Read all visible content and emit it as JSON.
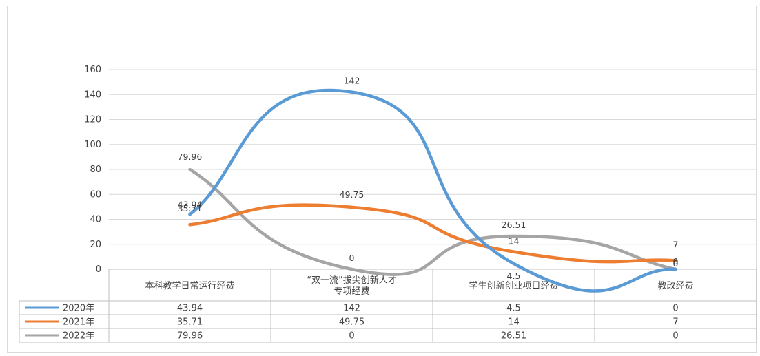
{
  "chart_data": {
    "type": "line",
    "smooth": true,
    "categories": [
      "本科教学日常运行经费",
      "“双一流”拔尖创新人才专项经费",
      "学生创新创业项目经费",
      "教改经费"
    ],
    "category_lines": [
      [
        "本科教学日常运行经费"
      ],
      [
        "“双一流”拔尖创新人才",
        "专项经费"
      ],
      [
        "学生创新创业项目经费"
      ],
      [
        "教改经费"
      ]
    ],
    "series": [
      {
        "name": "2020年",
        "color": "#5b9bd5",
        "values": [
          43.94,
          142,
          4.5,
          0
        ],
        "labels": [
          "43.94",
          "142",
          "4.5",
          "0"
        ]
      },
      {
        "name": "2021年",
        "color": "#ed7d31",
        "values": [
          35.71,
          49.75,
          14,
          7
        ],
        "labels": [
          "35.71",
          "49.75",
          "14",
          "7"
        ]
      },
      {
        "name": "2022年",
        "color": "#a5a5a5",
        "values": [
          79.96,
          0,
          26.51,
          0
        ],
        "labels": [
          "79.96",
          "0",
          "26.51",
          "0"
        ]
      }
    ],
    "ylim": [
      0,
      160
    ],
    "yticks": [
      0,
      20,
      40,
      60,
      80,
      100,
      120,
      140,
      160
    ],
    "grid": true,
    "data_table": true
  }
}
